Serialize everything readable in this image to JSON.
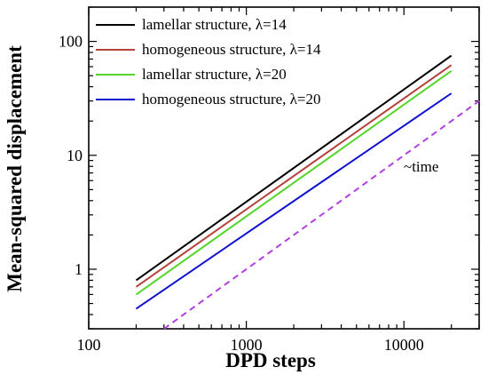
{
  "chart_data": {
    "type": "line",
    "title": "",
    "xlabel": "DPD steps",
    "ylabel": "Mean-squared displacement",
    "xscale": "log",
    "yscale": "log",
    "xlim": [
      100,
      30000
    ],
    "ylim": [
      0.3,
      200
    ],
    "xticks": [
      100,
      1000,
      10000
    ],
    "xtick_labels": [
      "100",
      "1000",
      "10000"
    ],
    "yticks": [
      1,
      10,
      100
    ],
    "ytick_labels": [
      "1",
      "10",
      "100"
    ],
    "grid": false,
    "legend_position": "top-left",
    "series": [
      {
        "name": "lamellar structure, λ=14",
        "color": "#000000",
        "style": "solid",
        "x": [
          200,
          20000
        ],
        "y": [
          0.8,
          75
        ]
      },
      {
        "name": "homogeneous structure, λ=14",
        "color": "#b5423a",
        "style": "solid",
        "x": [
          200,
          20000
        ],
        "y": [
          0.7,
          62
        ]
      },
      {
        "name": "lamellar structure, λ=20",
        "color": "#55d42a",
        "style": "solid",
        "x": [
          200,
          20000
        ],
        "y": [
          0.6,
          55
        ]
      },
      {
        "name": "homogeneous structure, λ=20",
        "color": "#1010d0",
        "style": "solid",
        "x": [
          200,
          20000
        ],
        "y": [
          0.45,
          35
        ]
      }
    ],
    "reference_line": {
      "color": "#b040e0",
      "style": "dashed",
      "x": [
        300,
        30000
      ],
      "y": [
        0.3,
        30
      ],
      "label": "~time"
    }
  }
}
